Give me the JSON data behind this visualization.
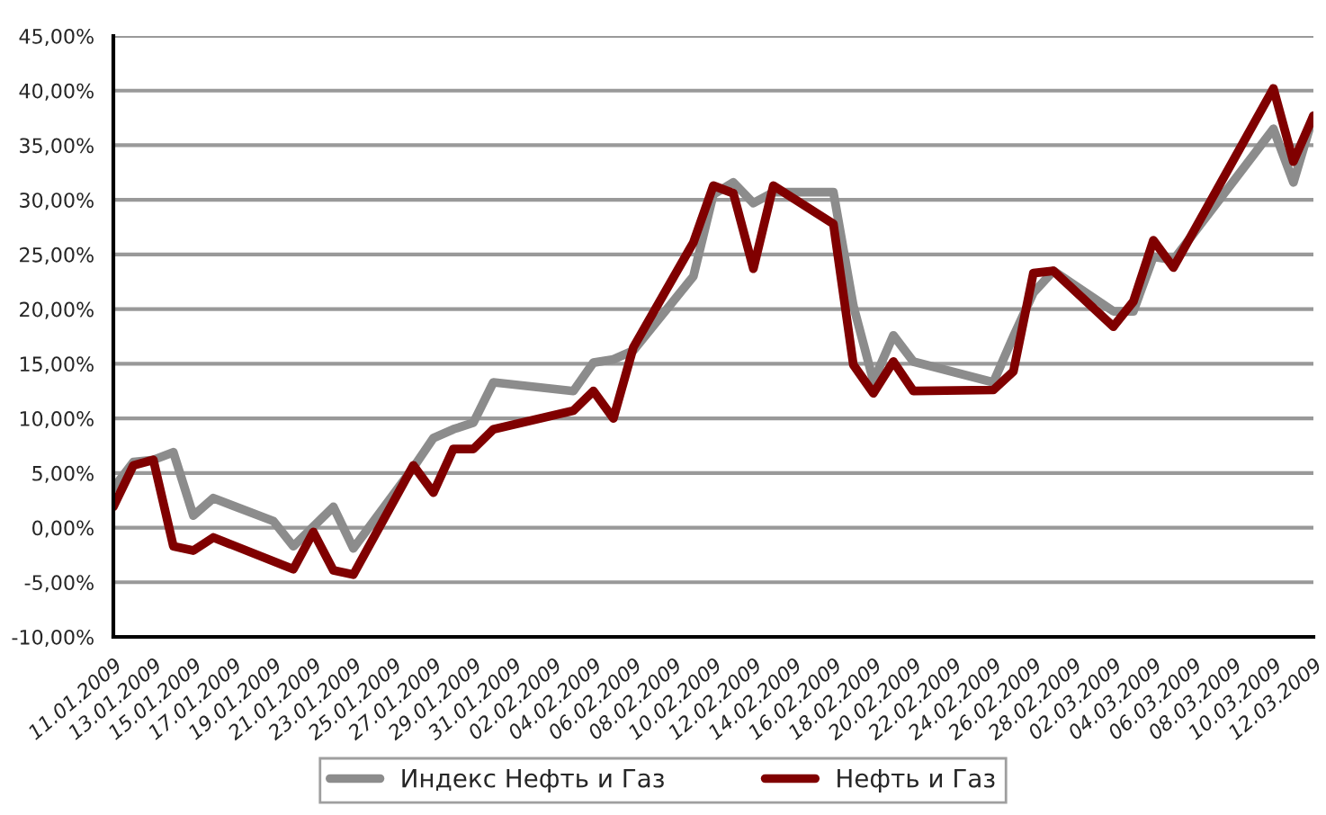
{
  "chart_data": {
    "type": "line",
    "ylim": [
      -10,
      45
    ],
    "yticks": [
      {
        "value": -10,
        "label": "-10,00%"
      },
      {
        "value": -5,
        "label": "-5,00%"
      },
      {
        "value": 0,
        "label": "0,00%"
      },
      {
        "value": 5,
        "label": "5,00%"
      },
      {
        "value": 10,
        "label": "10,00%"
      },
      {
        "value": 15,
        "label": "15,00%"
      },
      {
        "value": 20,
        "label": "20,00%"
      },
      {
        "value": 25,
        "label": "25,00%"
      },
      {
        "value": 30,
        "label": "30,00%"
      },
      {
        "value": 35,
        "label": "35,00%"
      },
      {
        "value": 40,
        "label": "40,00%"
      },
      {
        "value": 45,
        "label": "45,00%"
      }
    ],
    "xlim": [
      "2009-01-11",
      "2009-03-12"
    ],
    "xticks": [
      {
        "value": "2009-01-11",
        "label": "11.01.2009"
      },
      {
        "value": "2009-01-13",
        "label": "13.01.2009"
      },
      {
        "value": "2009-01-15",
        "label": "15.01.2009"
      },
      {
        "value": "2009-01-17",
        "label": "17.01.2009"
      },
      {
        "value": "2009-01-19",
        "label": "19.01.2009"
      },
      {
        "value": "2009-01-21",
        "label": "21.01.2009"
      },
      {
        "value": "2009-01-23",
        "label": "23.01.2009"
      },
      {
        "value": "2009-01-25",
        "label": "25.01.2009"
      },
      {
        "value": "2009-01-27",
        "label": "27.01.2009"
      },
      {
        "value": "2009-01-29",
        "label": "29.01.2009"
      },
      {
        "value": "2009-01-31",
        "label": "31.01.2009"
      },
      {
        "value": "2009-02-02",
        "label": "02.02.2009"
      },
      {
        "value": "2009-02-04",
        "label": "04.02.2009"
      },
      {
        "value": "2009-02-06",
        "label": "06.02.2009"
      },
      {
        "value": "2009-02-08",
        "label": "08.02.2009"
      },
      {
        "value": "2009-02-10",
        "label": "10.02.2009"
      },
      {
        "value": "2009-02-12",
        "label": "12.02.2009"
      },
      {
        "value": "2009-02-14",
        "label": "14.02.2009"
      },
      {
        "value": "2009-02-16",
        "label": "16.02.2009"
      },
      {
        "value": "2009-02-18",
        "label": "18.02.2009"
      },
      {
        "value": "2009-02-20",
        "label": "20.02.2009"
      },
      {
        "value": "2009-02-22",
        "label": "22.02.2009"
      },
      {
        "value": "2009-02-24",
        "label": "24.02.2009"
      },
      {
        "value": "2009-02-26",
        "label": "26.02.2009"
      },
      {
        "value": "2009-02-28",
        "label": "28.02.2009"
      },
      {
        "value": "2009-03-02",
        "label": "02.03.2009"
      },
      {
        "value": "2009-03-04",
        "label": "04.03.2009"
      },
      {
        "value": "2009-03-06",
        "label": "06.03.2009"
      },
      {
        "value": "2009-03-08",
        "label": "08.03.2009"
      },
      {
        "value": "2009-03-10",
        "label": "10.03.2009"
      },
      {
        "value": "2009-03-12",
        "label": "12.03.2009"
      }
    ],
    "grid": "y",
    "legend": "bottom",
    "marker": "none",
    "line_style": "solid",
    "series": [
      {
        "name": "Индекс Нефть и Газ",
        "color": "#8c8c8c",
        "x": [
          "2009-01-11",
          "2009-01-12",
          "2009-01-13",
          "2009-01-14",
          "2009-01-15",
          "2009-01-16",
          "2009-01-19",
          "2009-01-20",
          "2009-01-22",
          "2009-01-23",
          "2009-01-26",
          "2009-01-27",
          "2009-01-28",
          "2009-01-29",
          "2009-01-30",
          "2009-02-03",
          "2009-02-04",
          "2009-02-05",
          "2009-02-06",
          "2009-02-09",
          "2009-02-10",
          "2009-02-11",
          "2009-02-12",
          "2009-02-13",
          "2009-02-16",
          "2009-02-17",
          "2009-02-18",
          "2009-02-19",
          "2009-02-20",
          "2009-02-24",
          "2009-02-25",
          "2009-02-26",
          "2009-02-27",
          "2009-03-02",
          "2009-03-03",
          "2009-03-04",
          "2009-03-05",
          "2009-03-10",
          "2009-03-11",
          "2009-03-12"
        ],
        "values": [
          3.6,
          6.0,
          6.2,
          6.9,
          1.1,
          2.7,
          0.6,
          -1.7,
          1.9,
          -1.9,
          5.5,
          8.2,
          9.0,
          9.6,
          13.3,
          12.5,
          15.1,
          15.4,
          16.2,
          23.0,
          30.5,
          31.6,
          29.7,
          30.7,
          30.7,
          20.3,
          13.4,
          17.6,
          15.2,
          13.3,
          17.5,
          21.5,
          23.5,
          19.8,
          19.8,
          24.8,
          24.5,
          36.5,
          31.6,
          37.7
        ]
      },
      {
        "name": "Нефть и Газ",
        "color": "#800000",
        "x": [
          "2009-01-11",
          "2009-01-12",
          "2009-01-13",
          "2009-01-14",
          "2009-01-15",
          "2009-01-16",
          "2009-01-20",
          "2009-01-21",
          "2009-01-22",
          "2009-01-23",
          "2009-01-26",
          "2009-01-27",
          "2009-01-28",
          "2009-01-29",
          "2009-01-30",
          "2009-02-03",
          "2009-02-04",
          "2009-02-05",
          "2009-02-06",
          "2009-02-09",
          "2009-02-10",
          "2009-02-11",
          "2009-02-12",
          "2009-02-13",
          "2009-02-16",
          "2009-02-17",
          "2009-02-18",
          "2009-02-19",
          "2009-02-20",
          "2009-02-24",
          "2009-02-25",
          "2009-02-26",
          "2009-02-27",
          "2009-03-02",
          "2009-03-03",
          "2009-03-04",
          "2009-03-05",
          "2009-03-10",
          "2009-03-11",
          "2009-03-12"
        ],
        "values": [
          1.9,
          5.7,
          6.2,
          -1.7,
          -2.1,
          -0.9,
          -3.8,
          -0.4,
          -3.9,
          -4.3,
          5.7,
          3.2,
          7.2,
          7.2,
          9.0,
          10.7,
          12.5,
          10.0,
          16.5,
          26.1,
          31.3,
          30.6,
          23.7,
          31.3,
          27.8,
          14.9,
          12.3,
          15.2,
          12.5,
          12.6,
          14.3,
          23.3,
          23.5,
          18.4,
          20.7,
          26.3,
          23.8,
          40.2,
          33.5,
          37.7
        ]
      }
    ]
  }
}
